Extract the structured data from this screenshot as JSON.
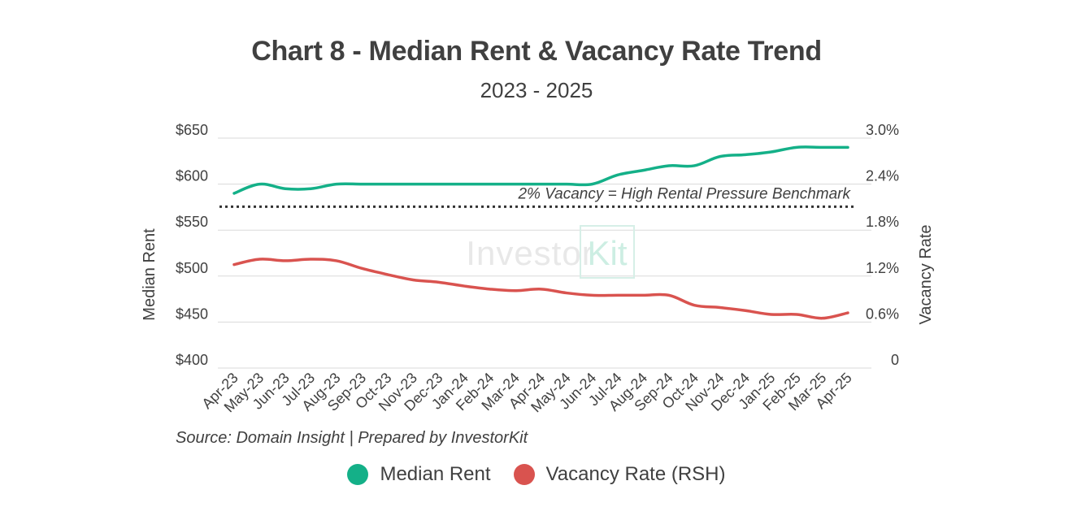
{
  "title": "Chart 8 - Median Rent & Vacancy Rate Trend",
  "subtitle": "2023 - 2025",
  "source": "Source: Domain Insight | Prepared by InvestorKit",
  "watermark": "InvestorKit",
  "chart_data": {
    "type": "line",
    "title": "Chart 8 - Median Rent & Vacancy Rate Trend",
    "subtitle": "2023 - 2025",
    "categories": [
      "Apr-23",
      "May-23",
      "Jun-23",
      "Jul-23",
      "Aug-23",
      "Sep-23",
      "Oct-23",
      "Nov-23",
      "Dec-23",
      "Jan-24",
      "Feb-24",
      "Mar-24",
      "Apr-24",
      "May-24",
      "Jun-24",
      "Jul-24",
      "Aug-24",
      "Sep-24",
      "Oct-24",
      "Nov-24",
      "Dec-24",
      "Jan-25",
      "Feb-25",
      "Mar-25",
      "Apr-25"
    ],
    "ylabel_left": "Median Rent",
    "ylabel_right": "Vacancy Rate",
    "y_left_ticks": [
      "$650",
      "$600",
      "$550",
      "$500",
      "$450",
      "$400"
    ],
    "y_left_lim": [
      400,
      650
    ],
    "y_right_ticks": [
      "3.0%",
      "2.4%",
      "1.8%",
      "1.2%",
      "0.6%",
      "0"
    ],
    "y_right_lim": [
      0,
      3.0
    ],
    "grid": true,
    "legend_position": "bottom",
    "series": [
      {
        "name": "Median Rent",
        "axis": "left",
        "color": "#14b088",
        "values": [
          590,
          600,
          595,
          595,
          600,
          600,
          600,
          600,
          600,
          600,
          600,
          600,
          600,
          600,
          600,
          610,
          615,
          620,
          620,
          630,
          632,
          635,
          640,
          640,
          640
        ]
      },
      {
        "name": "Vacancy Rate (RSH)",
        "axis": "right",
        "color": "#d9534f",
        "values": [
          1.35,
          1.42,
          1.4,
          1.42,
          1.4,
          1.3,
          1.22,
          1.15,
          1.12,
          1.07,
          1.03,
          1.01,
          1.03,
          0.98,
          0.95,
          0.95,
          0.95,
          0.95,
          0.82,
          0.79,
          0.75,
          0.7,
          0.7,
          0.65,
          0.72
        ]
      }
    ],
    "reference_line": {
      "axis": "right",
      "value": 2.0,
      "label": "2% Vacancy = High Rental Pressure Benchmark",
      "color": "#333333"
    }
  }
}
